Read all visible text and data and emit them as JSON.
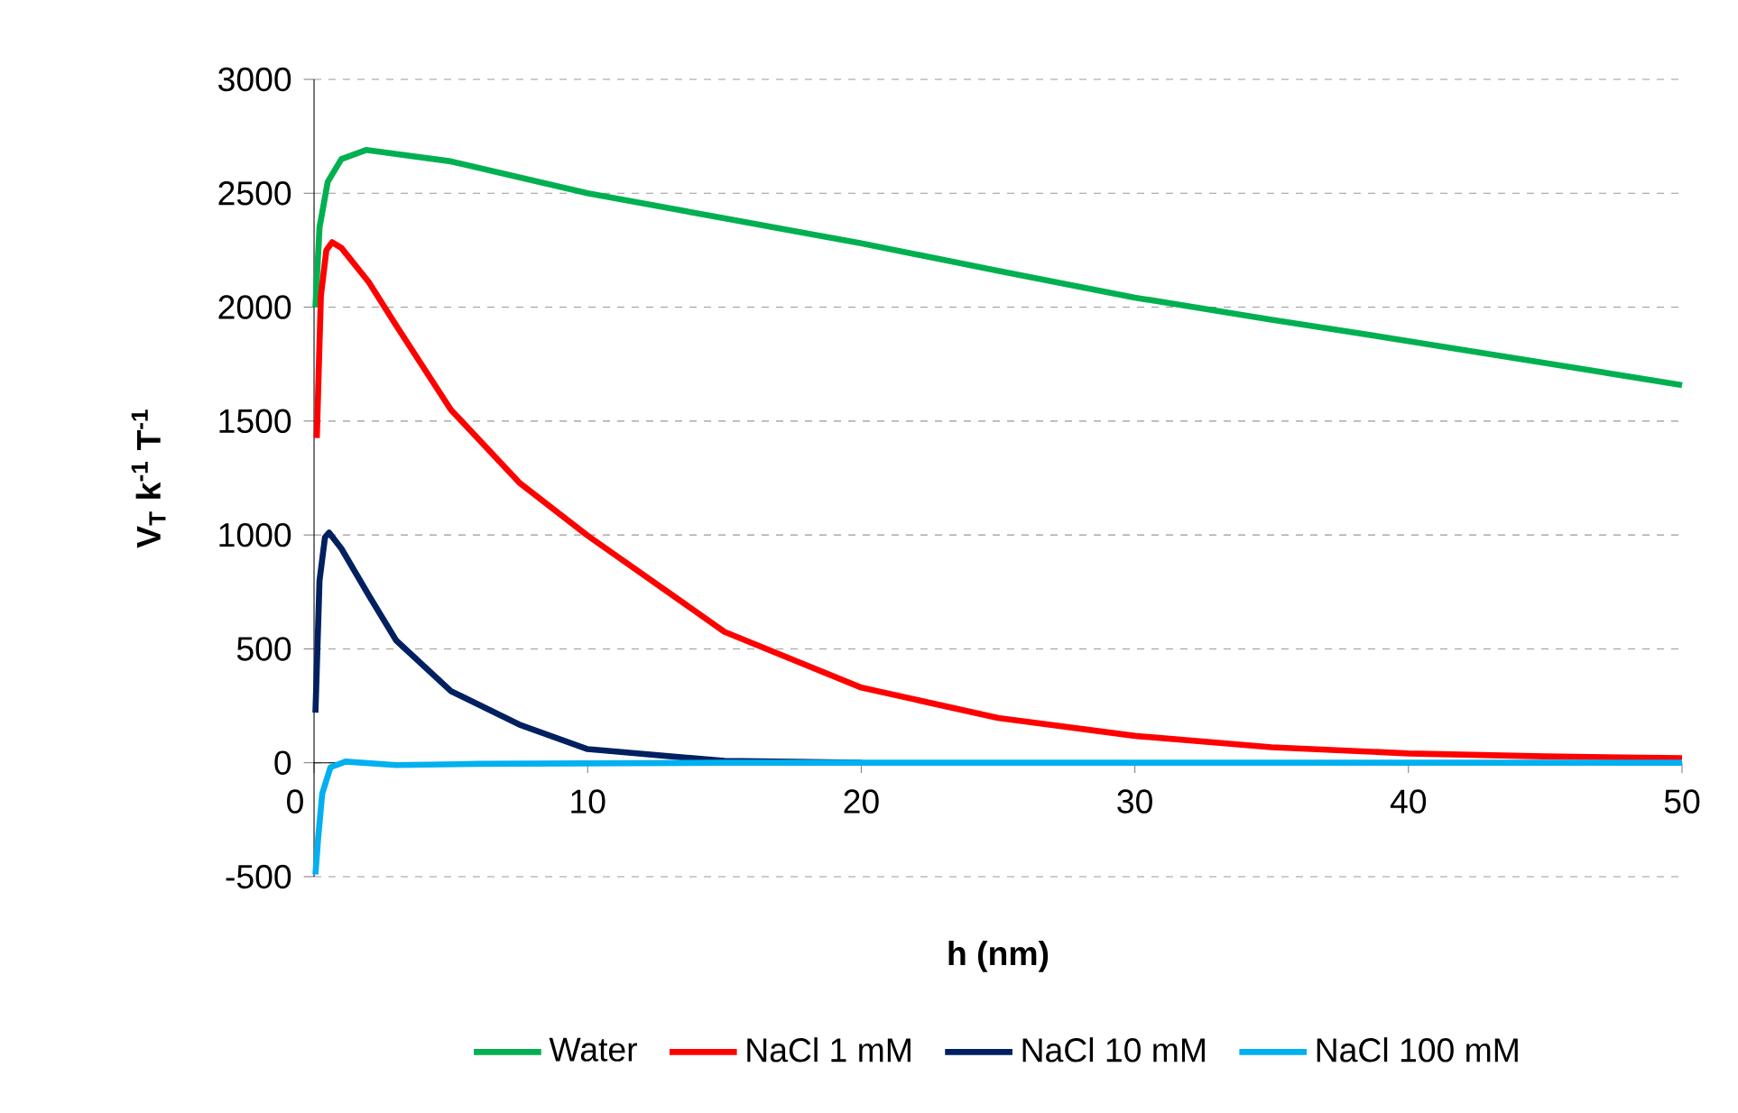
{
  "chart_data": {
    "type": "line",
    "xlabel": "h (nm)",
    "ylabel": "V$_{T}$ k$^{-1}$ T$^{-1}$",
    "xlim": [
      0,
      50
    ],
    "xticks": [
      0,
      10,
      20,
      30,
      40,
      50
    ],
    "ylim": [
      -500,
      3000
    ],
    "yticks": [
      -500,
      0,
      500,
      1000,
      1500,
      2000,
      2500,
      3000
    ],
    "grid": "y",
    "legend": "bottom",
    "marker": "none",
    "line_style": "solid",
    "series": [
      {
        "name": "Water",
        "color": "#00b050",
        "x": [
          0.05,
          0.2,
          0.5,
          1,
          1.9,
          5,
          10,
          15,
          20,
          25,
          30,
          35,
          40,
          45,
          50
        ],
        "values": [
          2000,
          2350,
          2550,
          2650,
          2690,
          2640,
          2500,
          2390,
          2280,
          2160,
          2042,
          1945,
          1851,
          1755,
          1658
        ]
      },
      {
        "name": "NaCl 1 mM",
        "color": "#ff0000",
        "x": [
          0.1,
          0.25,
          0.45,
          0.66,
          1,
          2,
          3,
          5,
          7.5,
          10,
          15,
          20,
          25,
          30,
          35,
          40,
          45,
          50
        ],
        "values": [
          1426,
          2050,
          2250,
          2285,
          2260,
          2110,
          1920,
          1550,
          1230,
          997,
          575,
          330,
          197,
          118,
          68,
          41,
          28,
          20
        ]
      },
      {
        "name": "NaCl 10 mM",
        "color": "#002060",
        "x": [
          0.05,
          0.2,
          0.4,
          0.55,
          1,
          2,
          3,
          5,
          7.5,
          10,
          15,
          20
        ],
        "values": [
          220,
          800,
          990,
          1010,
          940,
          735,
          537,
          315,
          168,
          60,
          8,
          0
        ]
      },
      {
        "name": "NaCl 100 mM",
        "color": "#00b0f0",
        "x": [
          0.05,
          0.15,
          0.3,
          0.6,
          1.15,
          3,
          6,
          15,
          50
        ],
        "values": [
          -490,
          -330,
          -135,
          -20,
          5,
          -10,
          -5,
          0,
          0
        ]
      }
    ]
  }
}
